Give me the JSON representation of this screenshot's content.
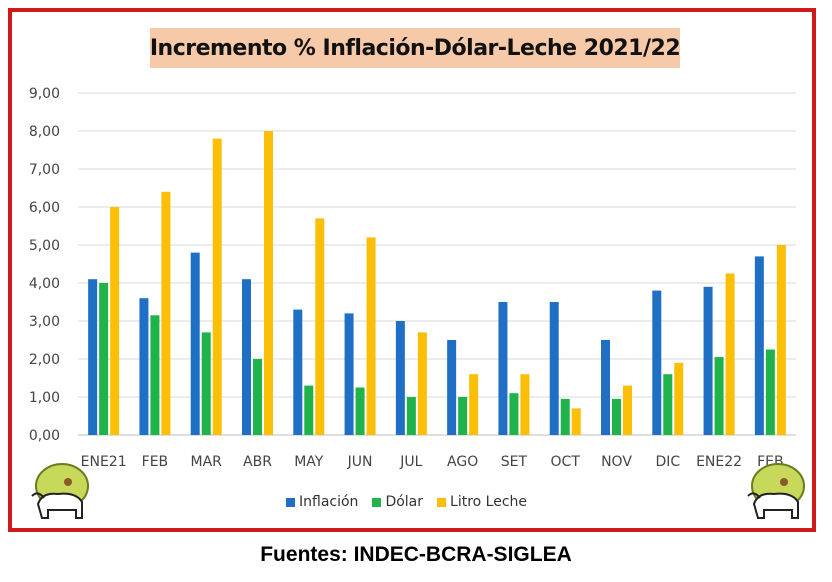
{
  "chart_data": {
    "type": "bar",
    "title": "Incremento % Inflación-Dólar-Leche 2021/22",
    "categories": [
      "ENE21",
      "FEB",
      "MAR",
      "ABR",
      "MAY",
      "JUN",
      "JUL",
      "AGO",
      "SET",
      "OCT",
      "NOV",
      "DIC",
      "ENE22",
      "FEB"
    ],
    "series": [
      {
        "name": "Inflación",
        "color": "#1f6fc5",
        "values": [
          4.1,
          3.6,
          4.8,
          4.1,
          3.3,
          3.2,
          3.0,
          2.5,
          3.5,
          3.5,
          2.5,
          3.8,
          3.9,
          4.7
        ]
      },
      {
        "name": "Dólar",
        "color": "#1fb34a",
        "values": [
          4.0,
          3.15,
          2.7,
          2.0,
          1.3,
          1.25,
          1.0,
          1.0,
          1.1,
          0.95,
          0.95,
          1.6,
          2.05,
          2.25
        ]
      },
      {
        "name": "Litro Leche",
        "color": "#fbbf07",
        "values": [
          6.0,
          6.4,
          7.8,
          8.0,
          5.7,
          5.2,
          2.7,
          1.6,
          1.6,
          0.7,
          1.3,
          1.9,
          4.25,
          5.0
        ]
      }
    ],
    "yticks": [
      "0,00",
      "1,00",
      "2,00",
      "3,00",
      "4,00",
      "5,00",
      "6,00",
      "7,00",
      "8,00",
      "9,00"
    ],
    "ylim": [
      0,
      9
    ],
    "grid": true,
    "legend": "bottom"
  },
  "footer": "Fuentes: INDEC-BCRA-SIGLEA",
  "colors": {
    "frame": "#d0191b",
    "title_bg": "#f6c9a8",
    "grid": "#d9d9d9"
  }
}
